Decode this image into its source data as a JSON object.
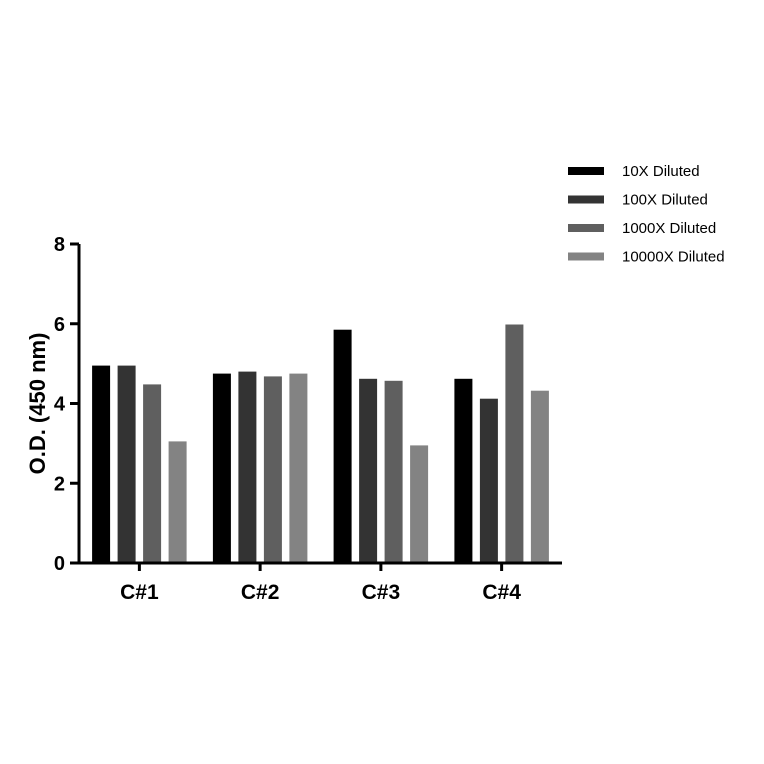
{
  "chart_data": {
    "type": "bar",
    "title": "",
    "xlabel": "",
    "ylabel": "O.D. (450 nm)",
    "ylim": [
      0,
      8
    ],
    "yticks": [
      0,
      2,
      4,
      6,
      8
    ],
    "grid": false,
    "legend_position": "top-right",
    "categories": [
      "C#1",
      "C#2",
      "C#3",
      "C#4"
    ],
    "series": [
      {
        "name": "10X Diluted",
        "color": "#000000",
        "values": [
          4.95,
          4.75,
          5.85,
          4.62
        ]
      },
      {
        "name": "100X Diluted",
        "color": "#333333",
        "values": [
          4.95,
          4.8,
          4.62,
          4.12
        ]
      },
      {
        "name": "1000X Diluted",
        "color": "#5f5f5f",
        "values": [
          4.48,
          4.68,
          4.57,
          5.98
        ]
      },
      {
        "name": "10000X Diluted",
        "color": "#838383",
        "values": [
          3.05,
          4.75,
          2.95,
          4.32
        ]
      }
    ]
  }
}
